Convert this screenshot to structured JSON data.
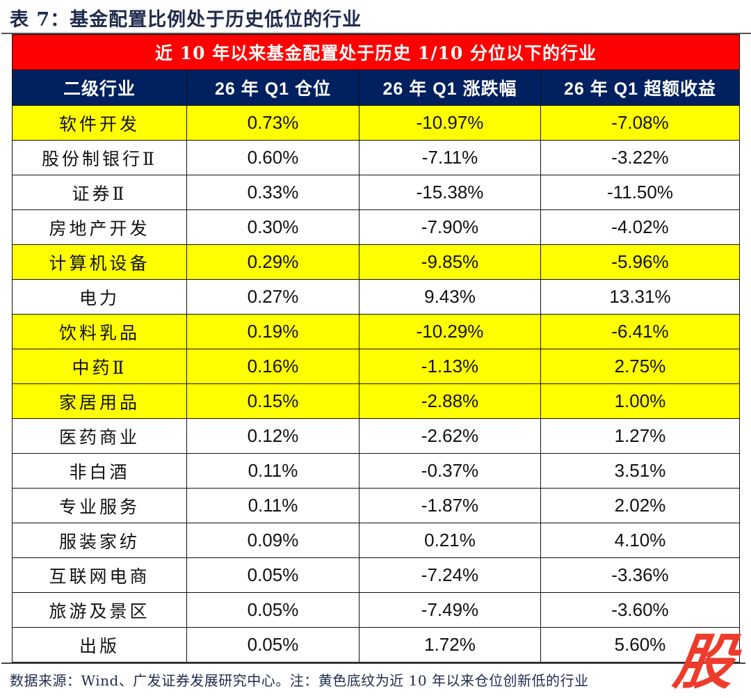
{
  "caption": "表 7：基金配置比例处于历史低位的行业",
  "banner": "近 10 年以来基金配置处于历史 1/10 分位以下的行业",
  "columns": [
    "二级行业",
    "26 年 Q1 仓位",
    "26 年 Q1 涨跌幅",
    "26 年 Q1 超额收益"
  ],
  "rows": [
    {
      "industry": "软件开发",
      "position": "0.73%",
      "change": "-10.97%",
      "excess": "-7.08%",
      "highlight": true
    },
    {
      "industry": "股份制银行Ⅱ",
      "position": "0.60%",
      "change": "-7.11%",
      "excess": "-3.22%",
      "highlight": false
    },
    {
      "industry": "证券Ⅱ",
      "position": "0.33%",
      "change": "-15.38%",
      "excess": "-11.50%",
      "highlight": false
    },
    {
      "industry": "房地产开发",
      "position": "0.30%",
      "change": "-7.90%",
      "excess": "-4.02%",
      "highlight": false
    },
    {
      "industry": "计算机设备",
      "position": "0.29%",
      "change": "-9.85%",
      "excess": "-5.96%",
      "highlight": true
    },
    {
      "industry": "电力",
      "position": "0.27%",
      "change": "9.43%",
      "excess": "13.31%",
      "highlight": false
    },
    {
      "industry": "饮料乳品",
      "position": "0.19%",
      "change": "-10.29%",
      "excess": "-6.41%",
      "highlight": true
    },
    {
      "industry": "中药Ⅱ",
      "position": "0.16%",
      "change": "-1.13%",
      "excess": "2.75%",
      "highlight": true
    },
    {
      "industry": "家居用品",
      "position": "0.15%",
      "change": "-2.88%",
      "excess": "1.00%",
      "highlight": true
    },
    {
      "industry": "医药商业",
      "position": "0.12%",
      "change": "-2.62%",
      "excess": "1.27%",
      "highlight": false
    },
    {
      "industry": "非白酒",
      "position": "0.11%",
      "change": "-0.37%",
      "excess": "3.51%",
      "highlight": false
    },
    {
      "industry": "专业服务",
      "position": "0.11%",
      "change": "-1.87%",
      "excess": "2.02%",
      "highlight": false
    },
    {
      "industry": "服装家纺",
      "position": "0.09%",
      "change": "0.21%",
      "excess": "4.10%",
      "highlight": false
    },
    {
      "industry": "互联网电商",
      "position": "0.05%",
      "change": "-7.24%",
      "excess": "-3.36%",
      "highlight": false
    },
    {
      "industry": "旅游及景区",
      "position": "0.05%",
      "change": "-7.49%",
      "excess": "-3.60%",
      "highlight": false
    },
    {
      "industry": "出版",
      "position": "0.05%",
      "change": "1.72%",
      "excess": "5.60%",
      "highlight": false
    }
  ],
  "source_note": "数据来源：Wind、广发证券发展研究中心。注：黄色底纹为近 10 年以来仓位创新低的行业",
  "watermark": "股",
  "colors": {
    "banner_bg": "#ff0000",
    "header_bg": "#002060",
    "highlight_bg": "#ffff00",
    "watermark": "#ee3b2b"
  }
}
